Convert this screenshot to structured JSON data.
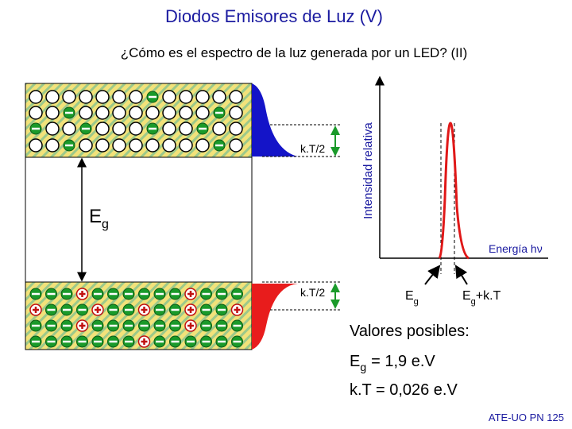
{
  "header": {
    "title": "Diodos Emisores de Luz (V)",
    "subtitle": "¿Cómo es el espectro de la luz generada por un LED? (II)"
  },
  "band_diagram": {
    "gap_label": {
      "main": "E",
      "sub": "g"
    },
    "spread_labels": [
      "k.T/2",
      "k.T/2"
    ]
  },
  "spectrum": {
    "y_axis_label": "Intensidad relativa",
    "x_axis_label": "Energía hν",
    "markers": [
      {
        "main": "E",
        "sub": "g"
      },
      {
        "main": "E",
        "sub": "g",
        "rest": "+k.T"
      }
    ]
  },
  "values": {
    "heading": "Valores posibles:",
    "lines": [
      {
        "main": "E",
        "sub": "g",
        "rest": "= 1,9 e.V"
      },
      {
        "main": "k.T = 0,026 e.V"
      }
    ]
  },
  "footer": "ATE-UO PN 125"
}
